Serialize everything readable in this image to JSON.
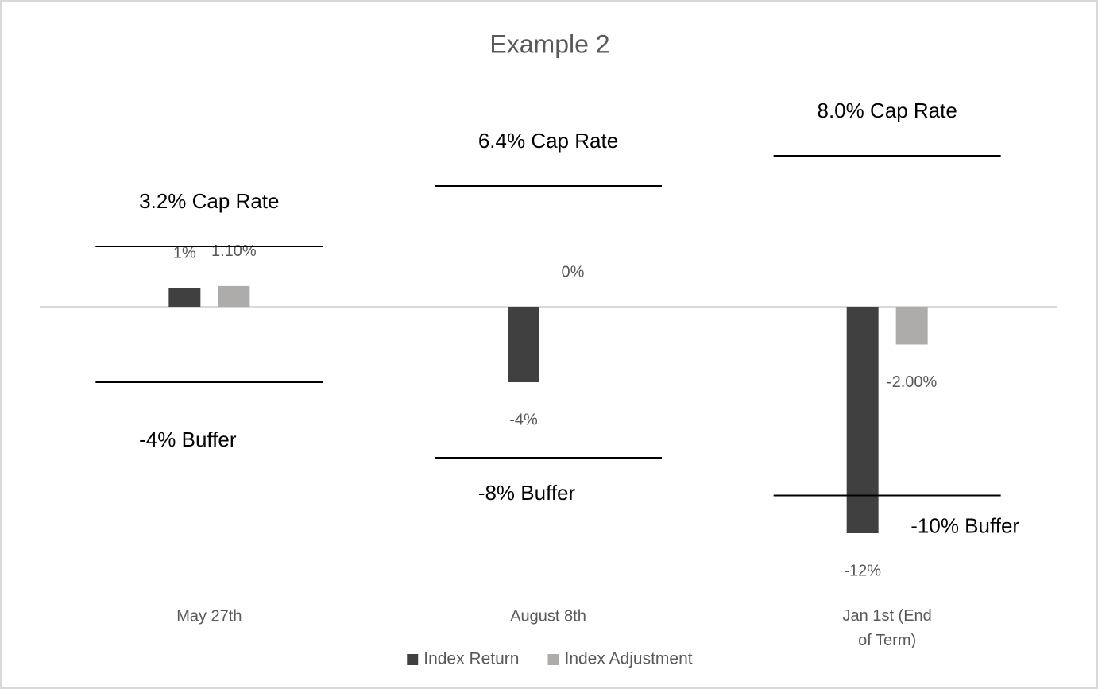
{
  "chart_data": {
    "type": "bar",
    "title": "Example 2",
    "categories": [
      "May 27th",
      "August 8th",
      "Jan 1st (End of Term)"
    ],
    "series": [
      {
        "name": "Index Return",
        "color": "#404040",
        "values": [
          1,
          -4,
          -12
        ],
        "value_labels": [
          "1%",
          "-4%",
          "-12%"
        ]
      },
      {
        "name": "Index Adjustment",
        "color": "#aeabab",
        "values": [
          1.1,
          0,
          -2
        ],
        "value_labels": [
          "1.10%",
          "0%",
          "-2.00%"
        ]
      }
    ],
    "cap_rates": {
      "labels": [
        "3.2% Cap Rate",
        "6.4% Cap Rate",
        "8.0% Cap Rate"
      ],
      "values": [
        3.2,
        6.4,
        8.0
      ]
    },
    "buffers": {
      "labels": [
        "-4% Buffer",
        "-8% Buffer",
        "-10% Buffer"
      ],
      "values": [
        -4,
        -8,
        -10
      ]
    },
    "ylim": [
      -14,
      10
    ],
    "legend": "bottom"
  }
}
